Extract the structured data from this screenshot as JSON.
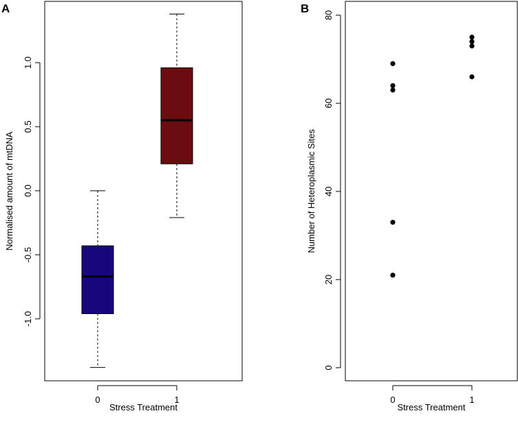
{
  "chart_data": [
    {
      "panel_label": "A",
      "type": "box",
      "xlabel": "Stress Treatment",
      "ylabel": "Normalised amount of mtDNA",
      "categories": [
        "0",
        "1"
      ],
      "yticks": [
        "-1.0",
        "-0.5",
        "0.0",
        "0.5",
        "1.0"
      ],
      "ytick_values": [
        -1.0,
        -0.5,
        0.0,
        0.5,
        1.0
      ],
      "ylim": [
        -1.48,
        1.48
      ],
      "grid": false,
      "boxes": [
        {
          "category": "0",
          "whisker_low": -1.38,
          "q1": -0.96,
          "median": -0.67,
          "q3": -0.43,
          "whisker_high": 0.0,
          "color": "#16087a"
        },
        {
          "category": "1",
          "whisker_low": -0.21,
          "q1": 0.21,
          "median": 0.55,
          "q3": 0.96,
          "whisker_high": 1.38,
          "color": "#6b0d10"
        }
      ]
    },
    {
      "panel_label": "B",
      "type": "scatter",
      "xlabel": "Stress Treatment",
      "ylabel": "Number of Heteroplasmic Sites",
      "categories": [
        "0",
        "1"
      ],
      "yticks": [
        "0",
        "20",
        "40",
        "60",
        "80"
      ],
      "ytick_values": [
        0,
        20,
        40,
        60,
        80
      ],
      "ylim": [
        -3,
        83
      ],
      "grid": false,
      "points": [
        {
          "x": 0,
          "y": 69
        },
        {
          "x": 0,
          "y": 64
        },
        {
          "x": 0,
          "y": 63
        },
        {
          "x": 0,
          "y": 33
        },
        {
          "x": 0,
          "y": 21
        },
        {
          "x": 1,
          "y": 75
        },
        {
          "x": 1,
          "y": 74
        },
        {
          "x": 1,
          "y": 73
        },
        {
          "x": 1,
          "y": 66
        }
      ]
    }
  ]
}
